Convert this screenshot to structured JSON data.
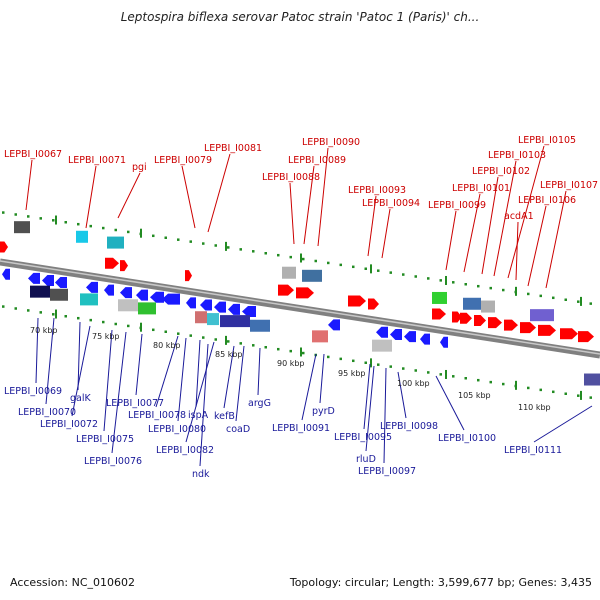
{
  "title": "Leptospira biflexa serovar Patoc strain 'Patoc 1 (Paris)' ch...",
  "footer": {
    "accession": "Accession: NC_010602",
    "topology": "Topology: circular; Length: 3,599,677 bp; Genes: 3,435"
  },
  "colors": {
    "forward_genes": "#ff0000",
    "reverse_genes": "#1a1aff",
    "backbone": "#808080",
    "track_dots": "#228b22",
    "label_top": "#cc0000",
    "label_bottom": "#1a1a99"
  },
  "kbp_ticks": [
    "70 kbp",
    "75 kbp",
    "80 kbp",
    "85 kbp",
    "90 kbp",
    "95 kbp",
    "100 kbp",
    "105 kbp",
    "110 kbp"
  ],
  "top_labels": [
    "LEPBI_I0067",
    "LEPBI_I0071",
    "pgi",
    "LEPBI_I0079",
    "LEPBI_I0081",
    "LEPBI_I0088",
    "LEPBI_I0089",
    "LEPBI_I0090",
    "LEPBI_I0093",
    "LEPBI_I0094",
    "LEPBI_I0099",
    "LEPBI_I0101",
    "LEPBI_I0102",
    "LEPBI_I0103",
    "LEPBI_I0105",
    "acdA1",
    "LEPBI_I0106",
    "LEPBI_I0107"
  ],
  "bottom_labels": [
    "LEPBI_I0069",
    "LEPBI_I0070",
    "galK",
    "LEPBI_I0072",
    "LEPBI_I0075",
    "LEPBI_I0076",
    "LEPBI_I0077",
    "LEPBI_I0078",
    "LEPBI_I0080",
    "ispA",
    "LEPBI_I0082",
    "ndk",
    "kefB",
    "coaD",
    "argG",
    "LEPBI_I0091",
    "pyrD",
    "LEPBI_I0095",
    "rluD",
    "LEPBI_I0097",
    "LEPBI_I0098",
    "LEPBI_I0100",
    "LEPBI_I0111"
  ]
}
